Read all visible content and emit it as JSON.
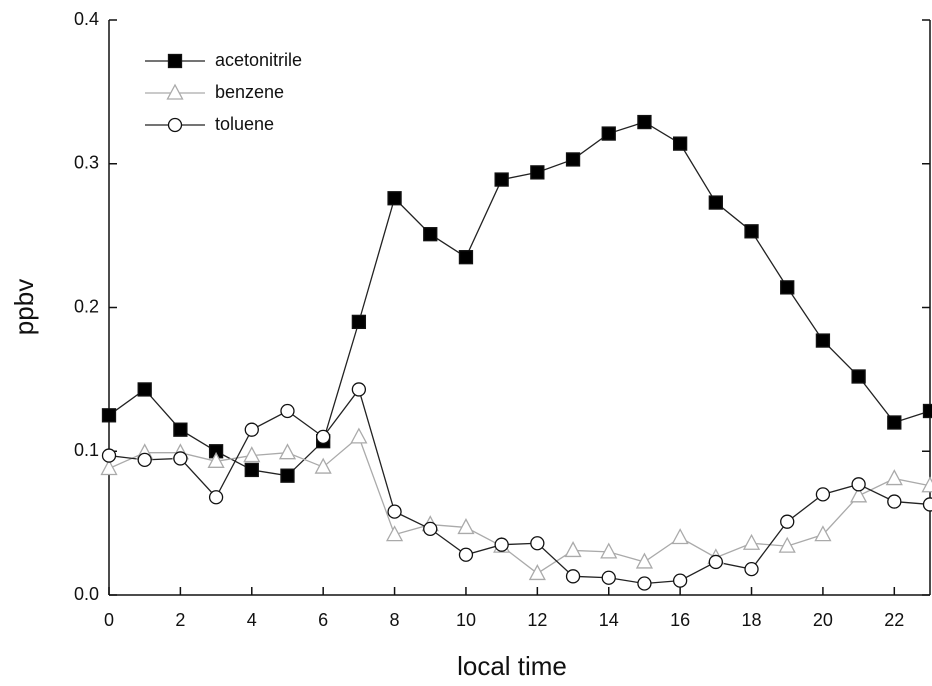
{
  "chart_data": {
    "type": "line",
    "xlabel": "local time",
    "ylabel": "ppbv",
    "x": [
      0,
      1,
      2,
      3,
      4,
      5,
      6,
      7,
      8,
      9,
      10,
      11,
      12,
      13,
      14,
      15,
      16,
      17,
      18,
      19,
      20,
      21,
      22,
      23
    ],
    "series": [
      {
        "name": "acetonitrile",
        "color": "#222222",
        "marker": "square",
        "marker_fill": "#000000",
        "values": [
          0.125,
          0.143,
          0.115,
          0.1,
          0.087,
          0.083,
          0.107,
          0.19,
          0.276,
          0.251,
          0.235,
          0.289,
          0.294,
          0.303,
          0.321,
          0.329,
          0.314,
          0.273,
          0.253,
          0.214,
          0.177,
          0.152,
          0.12,
          0.128
        ]
      },
      {
        "name": "benzene",
        "color": "#aaaaaa",
        "marker": "triangle",
        "marker_fill": "#ffffff",
        "values": [
          0.088,
          0.099,
          0.099,
          0.093,
          0.097,
          0.099,
          0.089,
          0.11,
          0.042,
          0.049,
          0.047,
          0.034,
          0.015,
          0.031,
          0.03,
          0.023,
          0.04,
          0.026,
          0.036,
          0.034,
          0.042,
          0.069,
          0.081,
          0.076
        ]
      },
      {
        "name": "toluene",
        "color": "#222222",
        "marker": "circle",
        "marker_fill": "#ffffff",
        "values": [
          0.097,
          0.094,
          0.095,
          0.068,
          0.115,
          0.128,
          0.11,
          0.143,
          0.058,
          0.046,
          0.028,
          0.035,
          0.036,
          0.013,
          0.012,
          0.008,
          0.01,
          0.023,
          0.018,
          0.051,
          0.07,
          0.077,
          0.065,
          0.063
        ]
      }
    ],
    "xlim": [
      0,
      23
    ],
    "xticks": [
      0,
      2,
      4,
      6,
      8,
      10,
      12,
      14,
      16,
      18,
      20,
      22
    ],
    "ylim": [
      0,
      0.4
    ],
    "yticks": [
      {
        "value": 0,
        "label": "0.0"
      },
      0.1,
      0.2,
      0.3,
      0.4
    ],
    "legend": "top-left",
    "grid": false
  }
}
